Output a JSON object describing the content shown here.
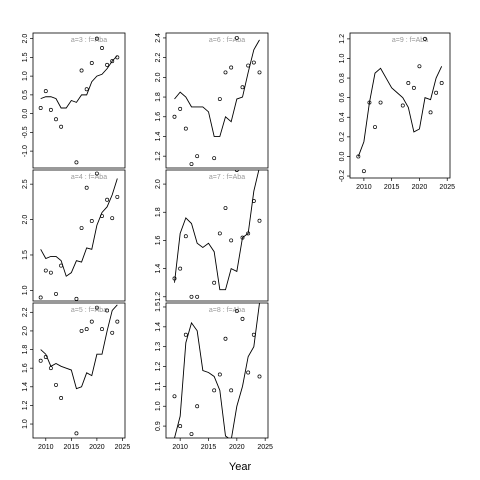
{
  "chart_data": {
    "type": "scatter",
    "xlabel": "Year",
    "x_ticks": [
      2010,
      2015,
      2020,
      2025
    ],
    "panels": [
      {
        "id": "a3",
        "title": "a=3 : f=Aba",
        "xlim": [
          2007.5,
          2025.5
        ],
        "ylim": [
          -1.45,
          2.15
        ],
        "y_ticks": [
          -1.0,
          -0.5,
          0.0,
          0.5,
          1.0,
          1.5,
          2.0
        ],
        "y_tick_labels": [
          "-1.0",
          "-0.5",
          "0.0",
          "0.5",
          "1.0",
          "1.5",
          "2.0"
        ],
        "points": [
          [
            2009,
            0.15
          ],
          [
            2010,
            0.6
          ],
          [
            2011,
            0.1
          ],
          [
            2012,
            -0.15
          ],
          [
            2013,
            -0.35
          ],
          [
            2016,
            -1.3
          ],
          [
            2017,
            1.15
          ],
          [
            2018,
            0.65
          ],
          [
            2019,
            1.35
          ],
          [
            2020,
            2.0
          ],
          [
            2021,
            1.75
          ],
          [
            2022,
            1.3
          ],
          [
            2023,
            1.4
          ],
          [
            2024,
            1.5
          ]
        ],
        "line": [
          [
            2009,
            0.4
          ],
          [
            2010,
            0.45
          ],
          [
            2011,
            0.45
          ],
          [
            2012,
            0.4
          ],
          [
            2013,
            0.15
          ],
          [
            2014,
            0.15
          ],
          [
            2015,
            0.35
          ],
          [
            2016,
            0.3
          ],
          [
            2017,
            0.5
          ],
          [
            2018,
            0.5
          ],
          [
            2019,
            0.85
          ],
          [
            2020,
            1.0
          ],
          [
            2021,
            1.05
          ],
          [
            2022,
            1.2
          ],
          [
            2023,
            1.4
          ],
          [
            2024,
            1.55
          ]
        ]
      },
      {
        "id": "a6",
        "title": "a=6 : f=Aba",
        "xlim": [
          2007.5,
          2025.5
        ],
        "ylim": [
          1.08,
          2.45
        ],
        "y_ticks": [
          1.2,
          1.4,
          1.6,
          1.8,
          2.0,
          2.2,
          2.4
        ],
        "y_tick_labels": [
          "1.2",
          "1.4",
          "1.6",
          "1.8",
          "2.0",
          "2.2",
          "2.4"
        ],
        "points": [
          [
            2009,
            1.6
          ],
          [
            2010,
            1.68
          ],
          [
            2011,
            1.48
          ],
          [
            2012,
            1.12
          ],
          [
            2013,
            1.2
          ],
          [
            2016,
            1.18
          ],
          [
            2017,
            1.78
          ],
          [
            2018,
            2.05
          ],
          [
            2019,
            2.1
          ],
          [
            2020,
            2.4
          ],
          [
            2021,
            1.9
          ],
          [
            2022,
            2.12
          ],
          [
            2023,
            2.15
          ],
          [
            2024,
            2.05
          ]
        ],
        "line": [
          [
            2009,
            1.78
          ],
          [
            2010,
            1.85
          ],
          [
            2011,
            1.8
          ],
          [
            2012,
            1.7
          ],
          [
            2013,
            1.7
          ],
          [
            2014,
            1.7
          ],
          [
            2015,
            1.65
          ],
          [
            2016,
            1.4
          ],
          [
            2017,
            1.4
          ],
          [
            2018,
            1.6
          ],
          [
            2019,
            1.55
          ],
          [
            2020,
            1.78
          ],
          [
            2021,
            1.8
          ],
          [
            2022,
            2.05
          ],
          [
            2023,
            2.28
          ],
          [
            2024,
            2.38
          ]
        ]
      },
      {
        "id": "a9",
        "title": "a=9 : f=Aba",
        "xlim": [
          2007.5,
          2025.5
        ],
        "ylim": [
          -0.22,
          1.26
        ],
        "y_ticks": [
          -0.2,
          0.0,
          0.2,
          0.4,
          0.6,
          0.8,
          1.0,
          1.2
        ],
        "y_tick_labels": [
          "-0.2",
          "0.0",
          "0.2",
          "0.4",
          "0.6",
          "0.8",
          "1.0",
          "1.2"
        ],
        "points": [
          [
            2009,
            0.0
          ],
          [
            2010,
            -0.15
          ],
          [
            2011,
            0.55
          ],
          [
            2012,
            0.3
          ],
          [
            2013,
            0.55
          ],
          [
            2017,
            0.52
          ],
          [
            2018,
            0.75
          ],
          [
            2019,
            0.7
          ],
          [
            2020,
            0.92
          ],
          [
            2021,
            1.2
          ],
          [
            2022,
            0.45
          ],
          [
            2023,
            0.65
          ],
          [
            2024,
            0.75
          ]
        ],
        "line": [
          [
            2009,
            0.0
          ],
          [
            2010,
            0.15
          ],
          [
            2011,
            0.55
          ],
          [
            2012,
            0.85
          ],
          [
            2013,
            0.9
          ],
          [
            2014,
            0.8
          ],
          [
            2015,
            0.7
          ],
          [
            2016,
            0.65
          ],
          [
            2017,
            0.6
          ],
          [
            2018,
            0.5
          ],
          [
            2019,
            0.25
          ],
          [
            2020,
            0.28
          ],
          [
            2021,
            0.6
          ],
          [
            2022,
            0.58
          ],
          [
            2023,
            0.8
          ],
          [
            2024,
            0.92
          ]
        ]
      },
      {
        "id": "a4",
        "title": "a=4 : f=Aba",
        "xlim": [
          2007.5,
          2025.5
        ],
        "ylim": [
          0.85,
          2.7
        ],
        "y_ticks": [
          1.0,
          1.5,
          2.0,
          2.5
        ],
        "y_tick_labels": [
          "1.0",
          "1.5",
          "2.0",
          "2.5"
        ],
        "points": [
          [
            2009,
            0.9
          ],
          [
            2010,
            1.28
          ],
          [
            2011,
            1.25
          ],
          [
            2012,
            0.95
          ],
          [
            2013,
            1.35
          ],
          [
            2016,
            0.88
          ],
          [
            2017,
            1.88
          ],
          [
            2018,
            2.45
          ],
          [
            2019,
            1.98
          ],
          [
            2020,
            2.65
          ],
          [
            2021,
            2.05
          ],
          [
            2022,
            2.28
          ],
          [
            2023,
            2.02
          ],
          [
            2024,
            2.32
          ]
        ],
        "line": [
          [
            2009,
            1.58
          ],
          [
            2010,
            1.45
          ],
          [
            2011,
            1.48
          ],
          [
            2012,
            1.48
          ],
          [
            2013,
            1.42
          ],
          [
            2014,
            1.2
          ],
          [
            2015,
            1.25
          ],
          [
            2016,
            1.42
          ],
          [
            2017,
            1.4
          ],
          [
            2018,
            1.6
          ],
          [
            2019,
            1.58
          ],
          [
            2020,
            1.92
          ],
          [
            2021,
            2.1
          ],
          [
            2022,
            2.18
          ],
          [
            2023,
            2.35
          ],
          [
            2024,
            2.58
          ]
        ]
      },
      {
        "id": "a7",
        "title": "a=7 : f=Aba",
        "xlim": [
          2007.5,
          2025.5
        ],
        "ylim": [
          1.17,
          2.1
        ],
        "y_ticks": [
          1.2,
          1.4,
          1.6,
          1.8,
          2.0
        ],
        "y_tick_labels": [
          "1.2",
          "1.4",
          "1.6",
          "1.8",
          "2.0"
        ],
        "points": [
          [
            2009,
            1.33
          ],
          [
            2010,
            1.4
          ],
          [
            2011,
            1.63
          ],
          [
            2012,
            1.2
          ],
          [
            2013,
            1.2
          ],
          [
            2016,
            1.3
          ],
          [
            2017,
            1.65
          ],
          [
            2018,
            1.83
          ],
          [
            2019,
            1.6
          ],
          [
            2020,
            2.1
          ],
          [
            2021,
            1.62
          ],
          [
            2022,
            1.65
          ],
          [
            2023,
            1.88
          ],
          [
            2024,
            1.74
          ]
        ],
        "line": [
          [
            2009,
            1.3
          ],
          [
            2010,
            1.65
          ],
          [
            2011,
            1.76
          ],
          [
            2012,
            1.72
          ],
          [
            2013,
            1.58
          ],
          [
            2014,
            1.55
          ],
          [
            2015,
            1.58
          ],
          [
            2016,
            1.52
          ],
          [
            2017,
            1.25
          ],
          [
            2018,
            1.25
          ],
          [
            2019,
            1.4
          ],
          [
            2020,
            1.38
          ],
          [
            2021,
            1.62
          ],
          [
            2022,
            1.65
          ],
          [
            2023,
            1.95
          ],
          [
            2024,
            2.12
          ]
        ]
      },
      {
        "id": "a5",
        "title": "a=5 : f=Aba",
        "xlim": [
          2007.5,
          2025.5
        ],
        "ylim": [
          0.85,
          2.3
        ],
        "y_ticks": [
          1.0,
          1.2,
          1.4,
          1.6,
          1.8,
          2.0,
          2.2
        ],
        "y_tick_labels": [
          "1.0",
          "1.2",
          "1.4",
          "1.6",
          "1.8",
          "2.0",
          "2.2"
        ],
        "points": [
          [
            2009,
            1.68
          ],
          [
            2010,
            1.72
          ],
          [
            2011,
            1.6
          ],
          [
            2012,
            1.42
          ],
          [
            2013,
            1.28
          ],
          [
            2016,
            0.9
          ],
          [
            2017,
            2.0
          ],
          [
            2018,
            2.02
          ],
          [
            2019,
            2.1
          ],
          [
            2020,
            2.25
          ],
          [
            2021,
            2.02
          ],
          [
            2022,
            2.22
          ],
          [
            2023,
            1.98
          ],
          [
            2024,
            2.1
          ]
        ],
        "line": [
          [
            2009,
            1.8
          ],
          [
            2010,
            1.75
          ],
          [
            2011,
            1.62
          ],
          [
            2012,
            1.65
          ],
          [
            2013,
            1.62
          ],
          [
            2014,
            1.6
          ],
          [
            2015,
            1.58
          ],
          [
            2016,
            1.38
          ],
          [
            2017,
            1.4
          ],
          [
            2018,
            1.55
          ],
          [
            2019,
            1.52
          ],
          [
            2020,
            1.75
          ],
          [
            2021,
            1.75
          ],
          [
            2022,
            2.0
          ],
          [
            2023,
            2.22
          ],
          [
            2024,
            2.28
          ]
        ]
      },
      {
        "id": "a8",
        "title": "a=8 : f=Aba",
        "xlim": [
          2007.5,
          2025.5
        ],
        "ylim": [
          0.84,
          1.52
        ],
        "y_ticks": [
          0.9,
          1.0,
          1.1,
          1.2,
          1.3,
          1.4,
          1.5
        ],
        "y_tick_labels": [
          "0.9",
          "1.0",
          "1.1",
          "1.2",
          "1.3",
          "1.4",
          "1.5"
        ],
        "points": [
          [
            2009,
            1.05
          ],
          [
            2010,
            0.9
          ],
          [
            2011,
            1.36
          ],
          [
            2012,
            0.86
          ],
          [
            2013,
            1.0
          ],
          [
            2016,
            1.08
          ],
          [
            2017,
            1.16
          ],
          [
            2018,
            1.34
          ],
          [
            2019,
            1.08
          ],
          [
            2020,
            1.48
          ],
          [
            2021,
            1.44
          ],
          [
            2022,
            1.17
          ],
          [
            2023,
            1.36
          ],
          [
            2024,
            1.15
          ]
        ],
        "line": [
          [
            2009,
            0.84
          ],
          [
            2010,
            0.95
          ],
          [
            2011,
            1.32
          ],
          [
            2012,
            1.42
          ],
          [
            2013,
            1.38
          ],
          [
            2014,
            1.18
          ],
          [
            2015,
            1.17
          ],
          [
            2016,
            1.15
          ],
          [
            2017,
            1.08
          ],
          [
            2018,
            0.85
          ],
          [
            2019,
            0.83
          ],
          [
            2020,
            1.0
          ],
          [
            2021,
            1.1
          ],
          [
            2022,
            1.25
          ],
          [
            2023,
            1.3
          ],
          [
            2024,
            1.52
          ]
        ]
      }
    ]
  }
}
